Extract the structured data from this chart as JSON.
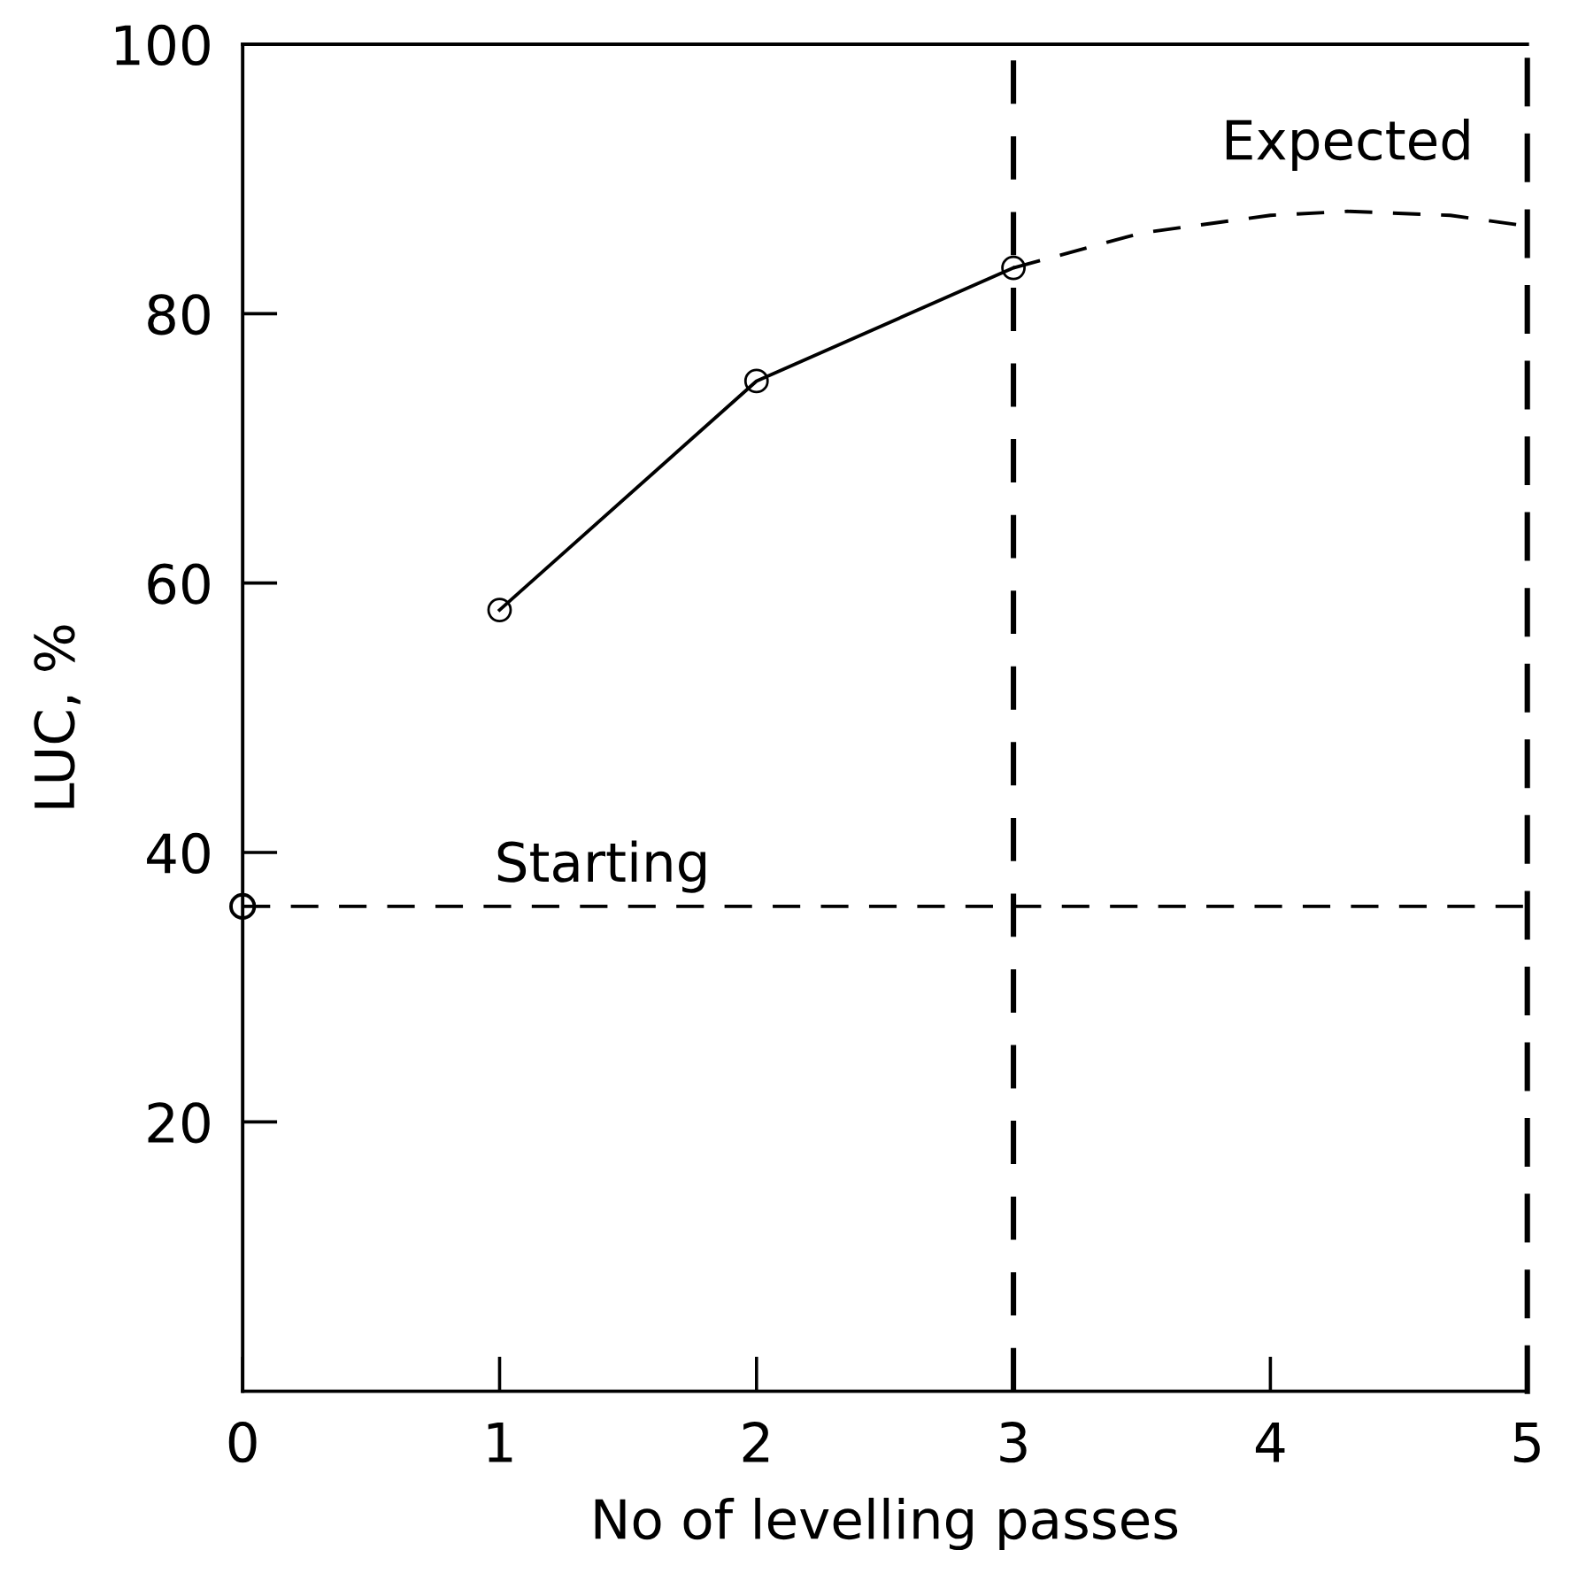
{
  "chart_data": {
    "type": "line",
    "xlabel": "No of levelling passes",
    "ylabel": "LUC, %",
    "xlim": [
      0,
      5
    ],
    "ylim": [
      0,
      100
    ],
    "xticks": [
      0,
      1,
      2,
      3,
      4,
      5
    ],
    "yticks": [
      20,
      40,
      60,
      80,
      100
    ],
    "grid": false,
    "legend": false,
    "series": [
      {
        "type": "scatter",
        "x": [
          0
        ],
        "values": [
          36
        ],
        "color": "#000000",
        "marker": "circle"
      },
      {
        "x": [
          1,
          2,
          3
        ],
        "values": [
          58,
          75,
          83.4
        ],
        "color": "#000000",
        "marker": "circle",
        "line_style": "solid"
      },
      {
        "name": "Expected",
        "x": [
          3,
          3.5,
          4,
          4.3,
          4.7,
          5
        ],
        "values": [
          83.4,
          86,
          87.3,
          87.6,
          87.3,
          86.5
        ],
        "color": "#000000",
        "marker": "none",
        "line_style": "dashed"
      }
    ],
    "ref_lines": [
      {
        "axis": "y",
        "value": 36,
        "label": "Starting",
        "line_style": "dashed"
      },
      {
        "axis": "x",
        "value": 3,
        "label": null,
        "line_style": "dashed"
      }
    ]
  }
}
